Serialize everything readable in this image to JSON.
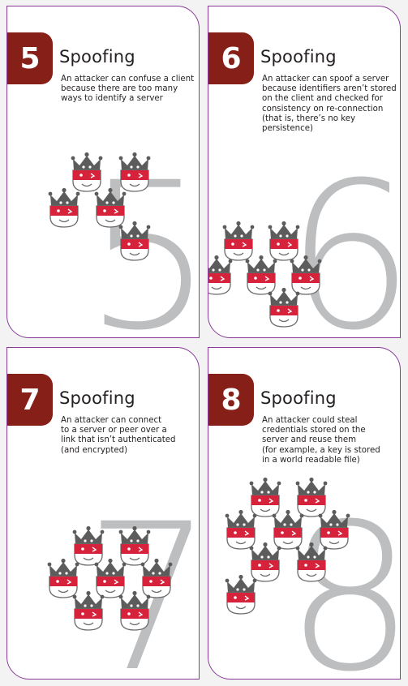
{
  "cards": [
    {
      "number": "5",
      "suit": "Spoofing",
      "description": "An attacker can confuse a client\nbecause there are too many\nways to identify a server",
      "big_number": "5"
    },
    {
      "number": "6",
      "suit": "Spoofing",
      "description": "An attacker can spoof a server\nbecause identifiers aren’t stored\non the client and checked for\nconsistency on re-connection\n(that is, there’s no key\npersistence)",
      "big_number": "6"
    },
    {
      "number": "7",
      "suit": "Spoofing",
      "description": "An attacker can connect\nto a server or peer over a\nlink that isn’t authenticated\n(and encrypted)",
      "big_number": "7"
    },
    {
      "number": "8",
      "suit": "Spoofing",
      "description": "An attacker could steal\ncredentials stored on the\nserver and reuse them\n(for example, a key is stored\nin a world readable file)",
      "big_number": "8"
    }
  ],
  "colors": {
    "badge": "#861f17",
    "border": "#8a3a99",
    "big_number": "#bcbec0",
    "crown_red": "#d7223c"
  },
  "icon": "crown-king-icon"
}
